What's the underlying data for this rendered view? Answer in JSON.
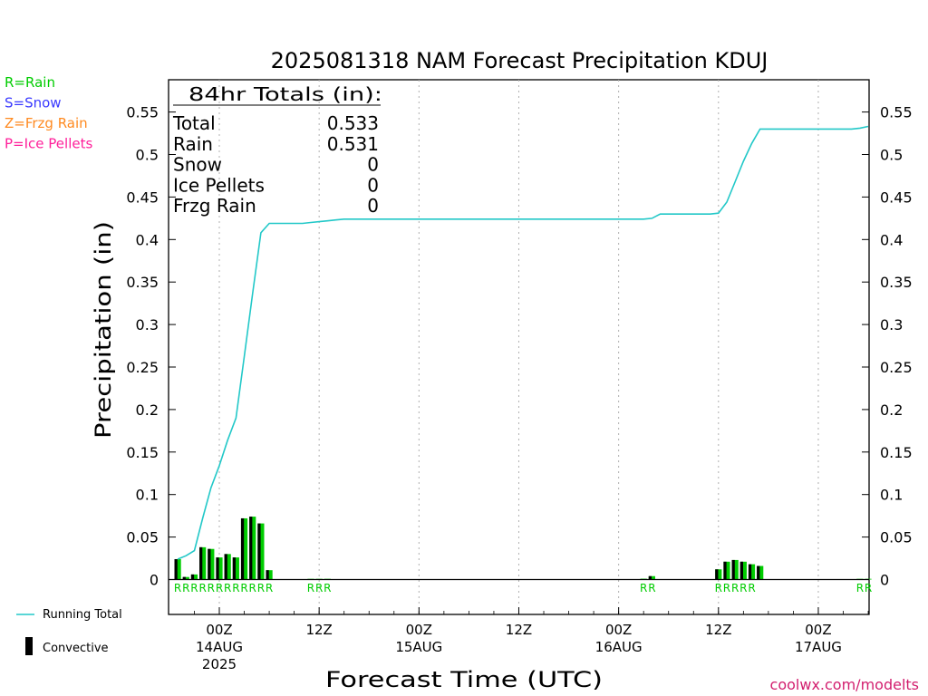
{
  "chart_data": {
    "type": "bar",
    "title": "2025081318 NAM Forecast Precipitation KDUJ",
    "ylabel": "Precipitation (in)",
    "xlabel": "Forecast Time (UTC)",
    "ylim": [
      0,
      0.59
    ],
    "yticks": [
      "0",
      "0.05",
      "0.1",
      "0.15",
      "0.2",
      "0.25",
      "0.3",
      "0.35",
      "0.4",
      "0.45",
      "0.5",
      "0.55"
    ],
    "forecast_hours": [
      1,
      2,
      3,
      4,
      5,
      6,
      7,
      8,
      9,
      10,
      11,
      12,
      13,
      14,
      15,
      16,
      17,
      18,
      19,
      20,
      21,
      22,
      23,
      24,
      25,
      26,
      27,
      28,
      29,
      30,
      31,
      32,
      33,
      34,
      35,
      36,
      37,
      38,
      39,
      40,
      41,
      42,
      43,
      44,
      45,
      46,
      47,
      48,
      49,
      50,
      51,
      52,
      53,
      54,
      55,
      56,
      57,
      58,
      59,
      60,
      61,
      62,
      63,
      64,
      65,
      66,
      67,
      68,
      69,
      70,
      71,
      72,
      73,
      74,
      75,
      76,
      77,
      78,
      79,
      80,
      81,
      82,
      83,
      84
    ],
    "x_ticks": [
      {
        "hour": 6,
        "label": "00Z",
        "date": "14AUG",
        "year": "2025"
      },
      {
        "hour": 18,
        "label": "12Z",
        "date": "",
        "year": ""
      },
      {
        "hour": 30,
        "label": "00Z",
        "date": "15AUG",
        "year": ""
      },
      {
        "hour": 42,
        "label": "12Z",
        "date": "",
        "year": ""
      },
      {
        "hour": 54,
        "label": "00Z",
        "date": "16AUG",
        "year": ""
      },
      {
        "hour": 66,
        "label": "12Z",
        "date": "",
        "year": ""
      },
      {
        "hour": 78,
        "label": "00Z",
        "date": "17AUG",
        "year": ""
      }
    ],
    "series": [
      {
        "name": "Running Total",
        "color": "#22c8c8",
        "values": [
          0.024,
          0.028,
          0.034,
          0.072,
          0.108,
          0.134,
          0.164,
          0.19,
          0.262,
          0.336,
          0.408,
          0.419,
          0.419,
          0.419,
          0.419,
          0.419,
          0.42,
          0.421,
          0.422,
          0.423,
          0.424,
          0.424,
          0.424,
          0.424,
          0.424,
          0.424,
          0.424,
          0.424,
          0.424,
          0.424,
          0.424,
          0.424,
          0.424,
          0.424,
          0.424,
          0.424,
          0.424,
          0.424,
          0.424,
          0.424,
          0.424,
          0.424,
          0.424,
          0.424,
          0.424,
          0.424,
          0.424,
          0.424,
          0.424,
          0.424,
          0.424,
          0.424,
          0.424,
          0.424,
          0.424,
          0.424,
          0.424,
          0.425,
          0.43,
          0.43,
          0.43,
          0.43,
          0.43,
          0.43,
          0.43,
          0.431,
          0.444,
          0.468,
          0.492,
          0.513,
          0.53,
          0.53,
          0.53,
          0.53,
          0.53,
          0.53,
          0.53,
          0.53,
          0.53,
          0.53,
          0.53,
          0.53,
          0.531,
          0.533
        ]
      },
      {
        "name": "hourly",
        "color": "#00cc00",
        "values": [
          0.024,
          0.003,
          0.006,
          0.038,
          0.036,
          0.026,
          0.03,
          0.026,
          0.072,
          0.074,
          0.066,
          0.011,
          0,
          0,
          0,
          0,
          0.0005,
          0.0005,
          0.0005,
          0,
          0,
          0,
          0,
          0,
          0,
          0,
          0,
          0,
          0,
          0,
          0,
          0,
          0,
          0,
          0,
          0,
          0,
          0,
          0,
          0,
          0,
          0,
          0,
          0,
          0,
          0,
          0,
          0,
          0,
          0,
          0,
          0,
          0,
          0,
          0,
          0,
          0.001,
          0.004,
          0,
          0,
          0,
          0,
          0,
          0,
          0,
          0.012,
          0.021,
          0.023,
          0.021,
          0.018,
          0.016,
          0,
          0,
          0,
          0,
          0,
          0,
          0,
          0,
          0,
          0,
          0,
          0.0005,
          0.0005
        ]
      },
      {
        "name": "Convective",
        "color": "#000000",
        "values": [
          0.012,
          0.002,
          0.003,
          0.02,
          0.018,
          0.013,
          0.015,
          0.013,
          0.036,
          0.037,
          0.033,
          0.006,
          0,
          0,
          0,
          0,
          0,
          0,
          0,
          0,
          0,
          0,
          0,
          0,
          0,
          0,
          0,
          0,
          0,
          0,
          0,
          0,
          0,
          0,
          0,
          0,
          0,
          0,
          0,
          0,
          0,
          0,
          0,
          0,
          0,
          0,
          0,
          0,
          0,
          0,
          0,
          0,
          0,
          0,
          0,
          0,
          0,
          0.002,
          0,
          0,
          0,
          0,
          0,
          0,
          0,
          0.006,
          0.011,
          0.012,
          0.011,
          0.009,
          0.008,
          0,
          0,
          0,
          0,
          0,
          0,
          0,
          0,
          0,
          0,
          0,
          0,
          0
        ]
      }
    ],
    "ptype_markers": [
      {
        "hour": 1,
        "type": "R"
      },
      {
        "hour": 2,
        "type": "R"
      },
      {
        "hour": 3,
        "type": "R"
      },
      {
        "hour": 4,
        "type": "R"
      },
      {
        "hour": 5,
        "type": "R"
      },
      {
        "hour": 6,
        "type": "R"
      },
      {
        "hour": 7,
        "type": "R"
      },
      {
        "hour": 8,
        "type": "R"
      },
      {
        "hour": 9,
        "type": "R"
      },
      {
        "hour": 10,
        "type": "R"
      },
      {
        "hour": 11,
        "type": "R"
      },
      {
        "hour": 12,
        "type": "R"
      },
      {
        "hour": 17,
        "type": "R"
      },
      {
        "hour": 18,
        "type": "R"
      },
      {
        "hour": 19,
        "type": "R"
      },
      {
        "hour": 57,
        "type": "R"
      },
      {
        "hour": 58,
        "type": "R"
      },
      {
        "hour": 66,
        "type": "R"
      },
      {
        "hour": 67,
        "type": "R"
      },
      {
        "hour": 68,
        "type": "R"
      },
      {
        "hour": 69,
        "type": "R"
      },
      {
        "hour": 70,
        "type": "R"
      },
      {
        "hour": 83,
        "type": "R"
      },
      {
        "hour": 84,
        "type": "R"
      }
    ],
    "totals_box": {
      "heading": "84hr Totals (in):",
      "rows": [
        {
          "label": "Total",
          "value": "0.533"
        },
        {
          "label": "Rain",
          "value": "0.531"
        },
        {
          "label": "Snow",
          "value": "0"
        },
        {
          "label": "Ice Pellets",
          "value": "0"
        },
        {
          "label": "Frzg Rain",
          "value": "0"
        }
      ]
    },
    "ptype_legend": [
      {
        "text": "R=Rain",
        "color": "#00cc00"
      },
      {
        "text": "S=Snow",
        "color": "#3a3aff"
      },
      {
        "text": "Z=Frzg Rain",
        "color": "#ff8a20"
      },
      {
        "text": "P=Ice Pellets",
        "color": "#ff1f9a"
      }
    ],
    "bottom_legend": {
      "line_label": "Running Total",
      "bar_label": "Convective"
    },
    "grid": "dotted vertical",
    "credit": "coolwx.com/modelts",
    "credit_color": "#d21e6e"
  }
}
